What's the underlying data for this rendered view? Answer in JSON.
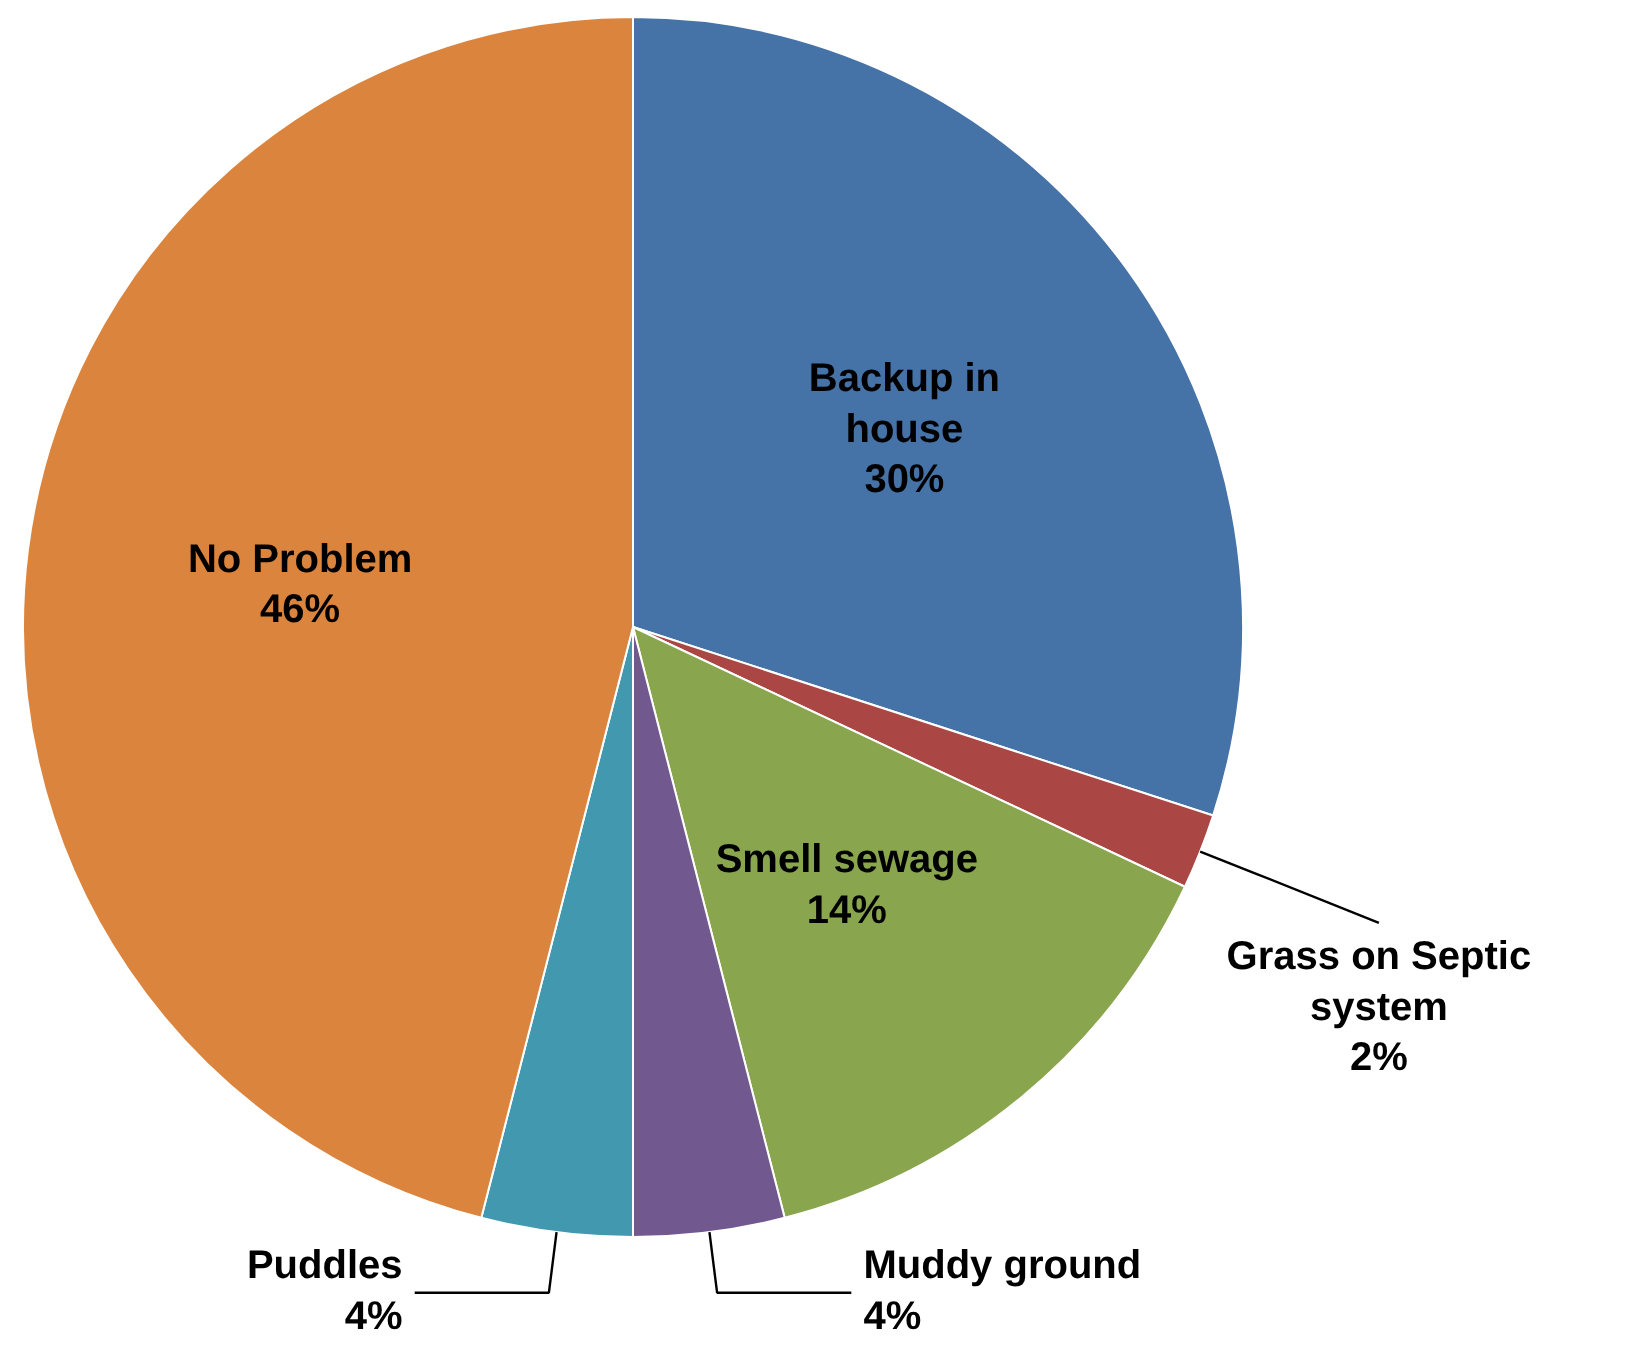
{
  "chart_data": {
    "type": "pie",
    "categories": [
      "Backup in house",
      "Grass on Septic system",
      "Smell sewage",
      "Muddy ground",
      "Puddles",
      "No Problem"
    ],
    "values": [
      30,
      2,
      14,
      4,
      4,
      46
    ],
    "colors": [
      "#4572a7",
      "#aa4643",
      "#89a54e",
      "#71588f",
      "#4198af",
      "#db843d"
    ],
    "value_labels": [
      "30%",
      "2%",
      "14%",
      "4%",
      "4%",
      "46%"
    ]
  }
}
